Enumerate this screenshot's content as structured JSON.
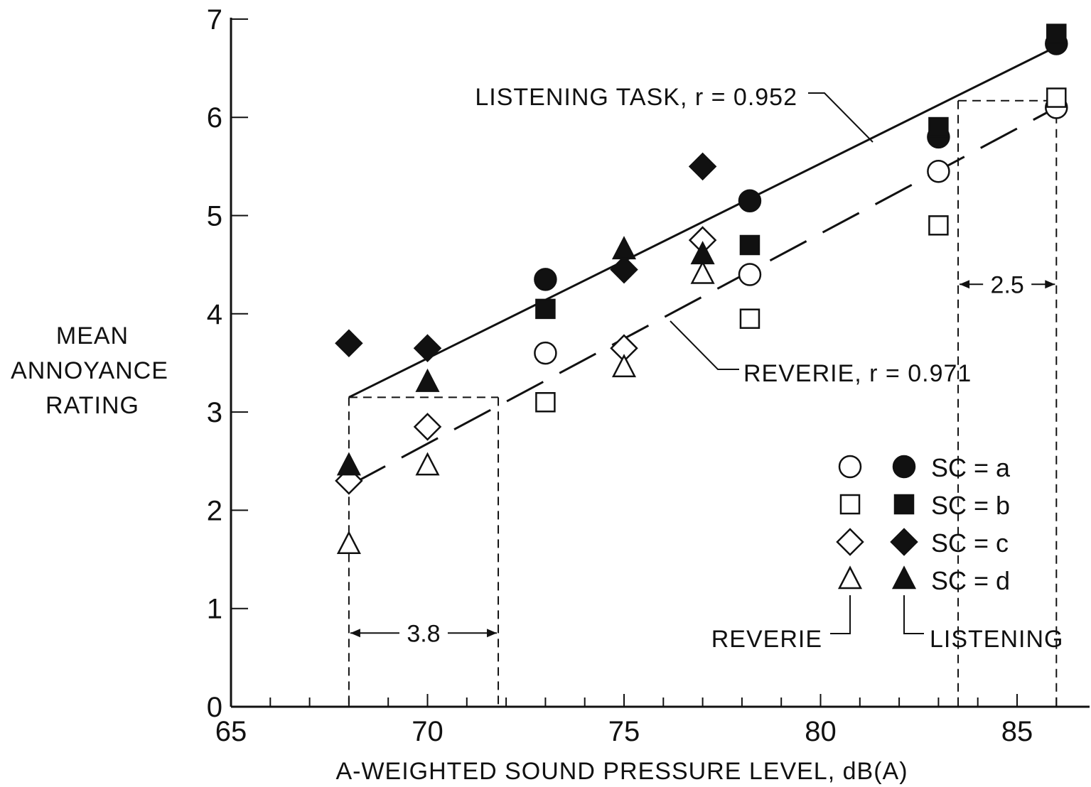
{
  "chart_data": {
    "type": "scatter",
    "title": "",
    "xlabel": "A-WEIGHTED SOUND PRESSURE LEVEL, dB(A)",
    "ylabel_lines": [
      "MEAN",
      "ANNOYANCE",
      "RATING"
    ],
    "xlim": [
      65,
      87
    ],
    "ylim": [
      0,
      7
    ],
    "x_ticks": [
      65,
      70,
      75,
      80,
      85
    ],
    "x_tick_labels": [
      "65",
      "70",
      "75",
      "80",
      "85"
    ],
    "y_ticks": [
      0,
      1,
      2,
      3,
      4,
      5,
      6,
      7
    ],
    "y_tick_labels": [
      "0",
      "1",
      "2",
      "3",
      "4",
      "5",
      "6",
      "7"
    ],
    "x_minor_step": 1,
    "grid": false,
    "legend_position": "bottom-right",
    "legend": {
      "entries": [
        {
          "code": "a",
          "label": "SC = a",
          "open": "circle",
          "filled": "circle"
        },
        {
          "code": "b",
          "label": "SC = b",
          "open": "square",
          "filled": "square"
        },
        {
          "code": "c",
          "label": "SC = c",
          "open": "diamond",
          "filled": "diamond"
        },
        {
          "code": "d",
          "label": "SC = d",
          "open": "triangle",
          "filled": "triangle"
        }
      ],
      "column_labels": {
        "open": "REVERIE",
        "filled": "LISTENING"
      }
    },
    "series": [
      {
        "task": "reverie",
        "code": "a",
        "marker": "circle",
        "filled": false,
        "points": [
          [
            73,
            3.6
          ],
          [
            78.2,
            4.4
          ],
          [
            83,
            5.45
          ],
          [
            86,
            6.1
          ]
        ]
      },
      {
        "task": "reverie",
        "code": "b",
        "marker": "square",
        "filled": false,
        "points": [
          [
            73,
            3.1
          ],
          [
            78.2,
            3.95
          ],
          [
            83,
            4.9
          ],
          [
            86,
            6.2
          ]
        ]
      },
      {
        "task": "reverie",
        "code": "c",
        "marker": "diamond",
        "filled": false,
        "points": [
          [
            68,
            2.3
          ],
          [
            70,
            2.85
          ],
          [
            75,
            3.65
          ],
          [
            77,
            4.75
          ]
        ]
      },
      {
        "task": "reverie",
        "code": "d",
        "marker": "triangle",
        "filled": false,
        "points": [
          [
            68,
            1.65
          ],
          [
            70,
            2.45
          ],
          [
            75,
            3.45
          ],
          [
            77,
            4.4
          ]
        ]
      },
      {
        "task": "listening",
        "code": "a",
        "marker": "circle",
        "filled": true,
        "points": [
          [
            73,
            4.35
          ],
          [
            78.2,
            5.15
          ],
          [
            83,
            5.8
          ],
          [
            86,
            6.75
          ]
        ]
      },
      {
        "task": "listening",
        "code": "b",
        "marker": "square",
        "filled": true,
        "points": [
          [
            73,
            4.05
          ],
          [
            78.2,
            4.7
          ],
          [
            83,
            5.9
          ],
          [
            86,
            6.85
          ]
        ]
      },
      {
        "task": "listening",
        "code": "c",
        "marker": "diamond",
        "filled": true,
        "points": [
          [
            68,
            3.7
          ],
          [
            70,
            3.65
          ],
          [
            75,
            4.45
          ],
          [
            77,
            5.5
          ]
        ]
      },
      {
        "task": "listening",
        "code": "d",
        "marker": "triangle",
        "filled": true,
        "points": [
          [
            68,
            2.45
          ],
          [
            70,
            3.3
          ],
          [
            75,
            4.65
          ],
          [
            77,
            4.6
          ]
        ]
      }
    ],
    "fit_lines": [
      {
        "task": "listening",
        "label": "LISTENING TASK, r = 0.952",
        "style": "solid",
        "from": [
          68,
          3.15
        ],
        "to": [
          86,
          6.72
        ]
      },
      {
        "task": "reverie",
        "label": "REVERIE, r = 0.971",
        "style": "long-dash",
        "from": [
          68,
          2.25
        ],
        "to": [
          86,
          6.1
        ]
      }
    ],
    "dimension_annotations": [
      {
        "label": "3.8",
        "x_from": 68,
        "x_to": 71.8,
        "y_level": 3.15,
        "arrow_y": 0.75
      },
      {
        "label": "2.5",
        "x_from": 83.5,
        "x_to": 86,
        "y_level": 6.17,
        "arrow_y": 4.3
      }
    ]
  }
}
